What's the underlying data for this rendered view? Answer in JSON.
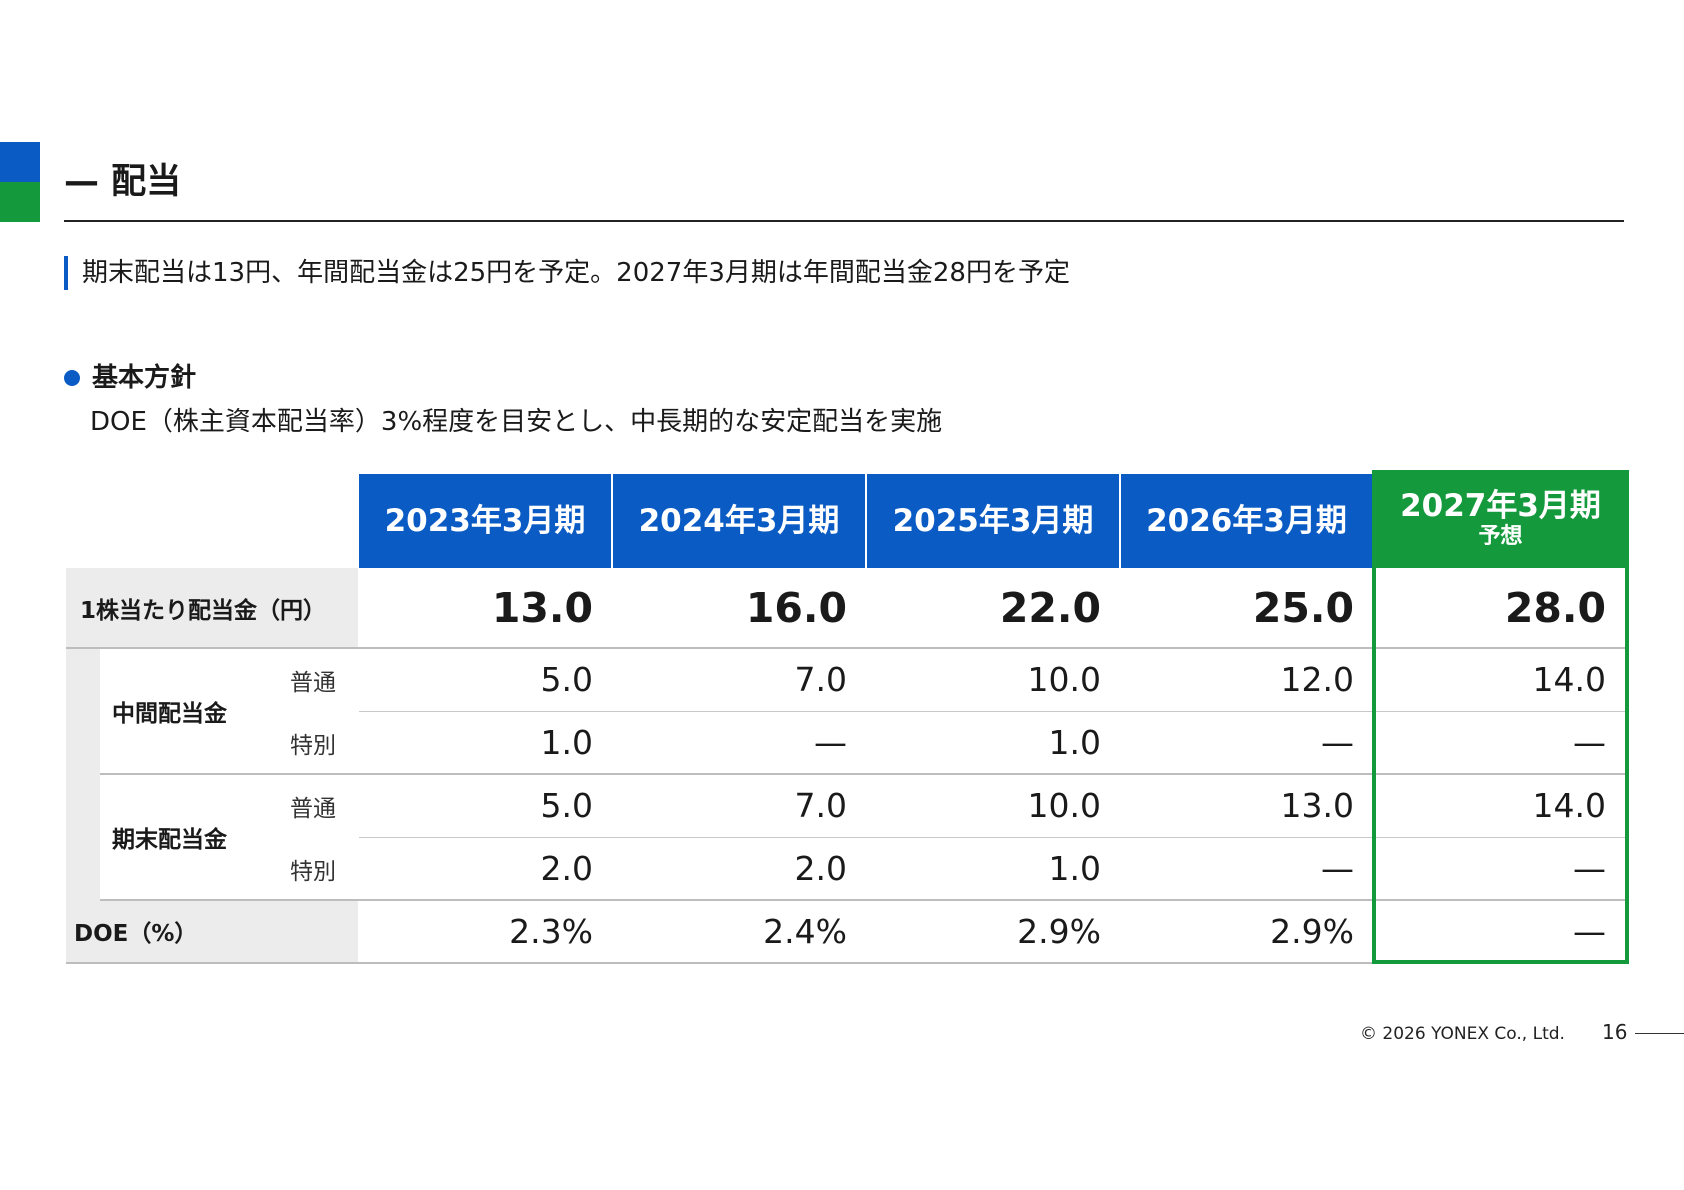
{
  "header": {
    "title": "— 配当",
    "colors": {
      "brand_blue": "#0a5bc4",
      "brand_green": "#149a3c"
    }
  },
  "lead": "期末配当は13円、年間配当金は25円を予定。2027年3月期は年間配当金28円を予定",
  "policy": {
    "heading": "基本方針",
    "text": "DOE（株主資本配当率）3%程度を目安とし、中長期的な安定配当を実施"
  },
  "table": {
    "columns": [
      {
        "label": "2023年3月期"
      },
      {
        "label": "2024年3月期"
      },
      {
        "label": "2025年3月期"
      },
      {
        "label": "2026年3月期"
      },
      {
        "label": "2027年3月期",
        "sub": "予想"
      }
    ],
    "dps": {
      "label": "1株当たり配当金（円）",
      "values": [
        "13.0",
        "16.0",
        "22.0",
        "25.0",
        "28.0"
      ]
    },
    "interim": {
      "label": "中間配当金",
      "ordinary": {
        "label": "普通",
        "values": [
          "5.0",
          "7.0",
          "10.0",
          "12.0",
          "14.0"
        ]
      },
      "special": {
        "label": "特別",
        "values": [
          "1.0",
          "—",
          "1.0",
          "—",
          "—"
        ]
      }
    },
    "year_end": {
      "label": "期末配当金",
      "ordinary": {
        "label": "普通",
        "values": [
          "5.0",
          "7.0",
          "10.0",
          "13.0",
          "14.0"
        ]
      },
      "special": {
        "label": "特別",
        "values": [
          "2.0",
          "2.0",
          "1.0",
          "—",
          "—"
        ]
      }
    },
    "doe": {
      "label": "DOE（%）",
      "values": [
        "2.3%",
        "2.4%",
        "2.9%",
        "2.9%",
        "—"
      ]
    }
  },
  "footer": {
    "copyright": "© 2026 YONEX Co., Ltd.",
    "page": "16"
  }
}
